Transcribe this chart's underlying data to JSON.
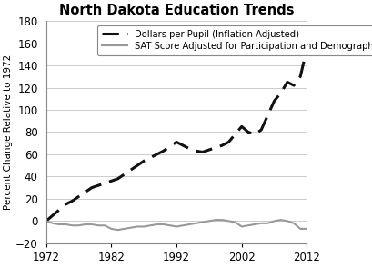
{
  "title": "North Dakota Education Trends",
  "ylabel": "Percent Change Relative to 1972",
  "xlim": [
    1972,
    2012
  ],
  "ylim": [
    -20,
    180
  ],
  "yticks": [
    -20,
    0,
    20,
    40,
    60,
    80,
    100,
    120,
    140,
    160,
    180
  ],
  "xticks": [
    1972,
    1982,
    1992,
    2002,
    2012
  ],
  "dollars_per_pupil": {
    "label": "Dollars per Pupil (Inflation Adjusted)",
    "color": "#111111",
    "linewidth": 2.2,
    "x": [
      1972,
      1973,
      1974,
      1975,
      1976,
      1977,
      1978,
      1979,
      1980,
      1981,
      1982,
      1983,
      1984,
      1985,
      1986,
      1987,
      1988,
      1989,
      1990,
      1991,
      1992,
      1993,
      1994,
      1995,
      1996,
      1997,
      1998,
      1999,
      2000,
      2001,
      2002,
      2003,
      2004,
      2005,
      2006,
      2007,
      2008,
      2009,
      2010,
      2011,
      2012
    ],
    "y": [
      0,
      5,
      10,
      15,
      18,
      22,
      26,
      30,
      32,
      34,
      36,
      38,
      42,
      46,
      50,
      54,
      57,
      60,
      63,
      67,
      71,
      68,
      65,
      63,
      62,
      64,
      66,
      68,
      71,
      78,
      85,
      80,
      78,
      82,
      95,
      108,
      115,
      125,
      122,
      130,
      155
    ]
  },
  "sat_score": {
    "label": "SAT Score Adjusted for Participation and Demographics",
    "color": "#999999",
    "linewidth": 1.5,
    "x": [
      1972,
      1973,
      1974,
      1975,
      1976,
      1977,
      1978,
      1979,
      1980,
      1981,
      1982,
      1983,
      1984,
      1985,
      1986,
      1987,
      1988,
      1989,
      1990,
      1991,
      1992,
      1993,
      1994,
      1995,
      1996,
      1997,
      1998,
      1999,
      2000,
      2001,
      2002,
      2003,
      2004,
      2005,
      2006,
      2007,
      2008,
      2009,
      2010,
      2011,
      2012
    ],
    "y": [
      0,
      -2,
      -3,
      -3,
      -4,
      -4,
      -3,
      -3,
      -4,
      -4,
      -7,
      -8,
      -7,
      -6,
      -5,
      -5,
      -4,
      -3,
      -3,
      -4,
      -5,
      -4,
      -3,
      -2,
      -1,
      0,
      1,
      1,
      0,
      -1,
      -5,
      -4,
      -3,
      -2,
      -2,
      0,
      1,
      0,
      -2,
      -7,
      -7
    ]
  },
  "background_color": "#ffffff",
  "grid_color": "#cccccc",
  "legend_fontsize": 7.2,
  "title_fontsize": 10.5,
  "ylabel_fontsize": 7.5,
  "tick_labelsize": 8.5
}
